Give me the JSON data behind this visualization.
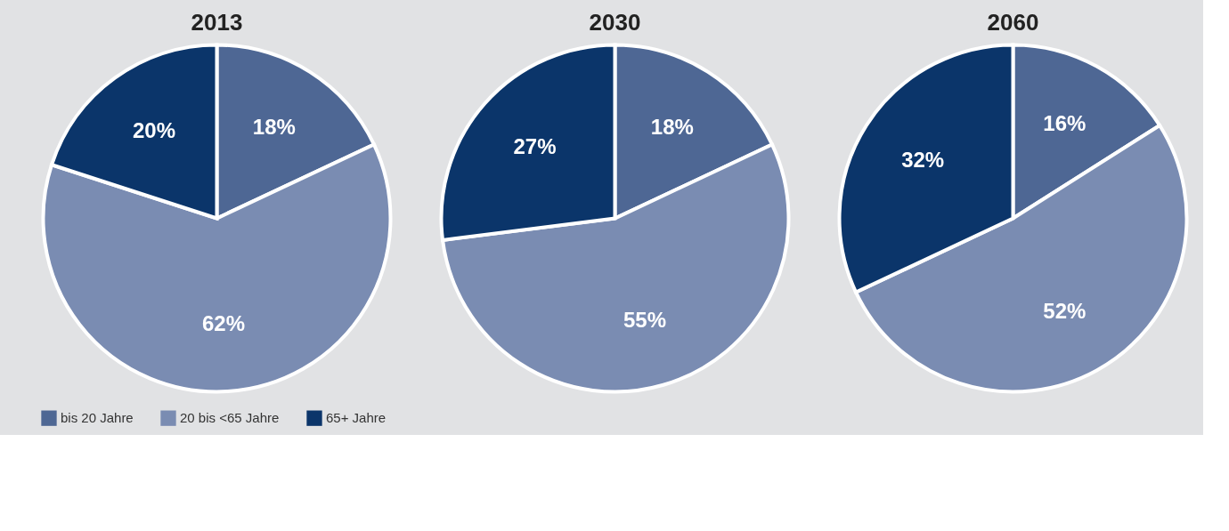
{
  "chart_data": [
    {
      "type": "pie",
      "title": "2013",
      "categories": [
        "bis 20 Jahre",
        "20 bis <65 Jahre",
        "65+ Jahre"
      ],
      "values": [
        18,
        62,
        20
      ],
      "value_labels": [
        "18%",
        "62%",
        "20%"
      ],
      "colors": [
        "#4e6794",
        "#7a8cb2",
        "#0b356a"
      ],
      "legend": "bottom left"
    },
    {
      "type": "pie",
      "title": "2030",
      "categories": [
        null,
        null,
        null
      ],
      "values": [
        18,
        55,
        27
      ],
      "value_labels": [
        "18%",
        "55%",
        "27%"
      ],
      "colors": [
        "#4e6794",
        "#7a8cb2",
        "#0b356a"
      ]
    },
    {
      "type": "pie",
      "title": "2060",
      "categories": [
        null,
        null,
        null
      ],
      "values": [
        16,
        52,
        32
      ],
      "value_labels": [
        "16%",
        "52%",
        "32%"
      ],
      "colors": [
        "#4e6794",
        "#7a8cb2",
        "#0b356a"
      ]
    }
  ]
}
